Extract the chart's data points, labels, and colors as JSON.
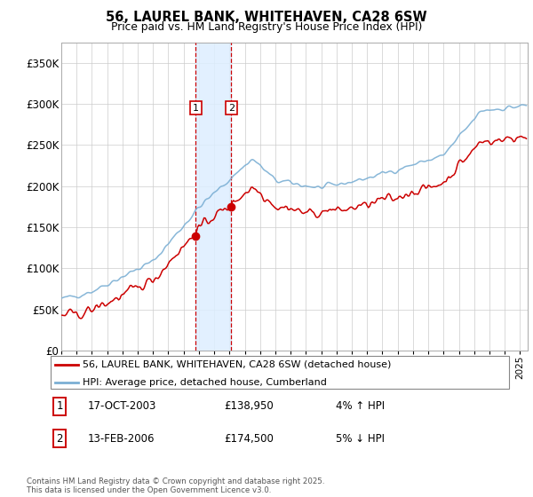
{
  "title": "56, LAUREL BANK, WHITEHAVEN, CA28 6SW",
  "subtitle": "Price paid vs. HM Land Registry's House Price Index (HPI)",
  "ylim": [
    0,
    375000
  ],
  "yticks": [
    0,
    50000,
    100000,
    150000,
    200000,
    250000,
    300000,
    350000
  ],
  "ytick_labels": [
    "£0",
    "£50K",
    "£100K",
    "£150K",
    "£200K",
    "£250K",
    "£300K",
    "£350K"
  ],
  "sale1_date_num": 2003.79,
  "sale1_price": 138950,
  "sale1_label": "1",
  "sale1_date_str": "17-OCT-2003",
  "sale1_pct": "4% ↑ HPI",
  "sale2_date_num": 2006.12,
  "sale2_price": 174500,
  "sale2_label": "2",
  "sale2_date_str": "13-FEB-2006",
  "sale2_pct": "5% ↓ HPI",
  "hpi_color": "#7bafd4",
  "price_color": "#cc0000",
  "shade_color": "#ddeeff",
  "legend_label_price": "56, LAUREL BANK, WHITEHAVEN, CA28 6SW (detached house)",
  "legend_label_hpi": "HPI: Average price, detached house, Cumberland",
  "footer": "Contains HM Land Registry data © Crown copyright and database right 2025.\nThis data is licensed under the Open Government Licence v3.0.",
  "xmin": 1995.0,
  "xmax": 2025.5
}
